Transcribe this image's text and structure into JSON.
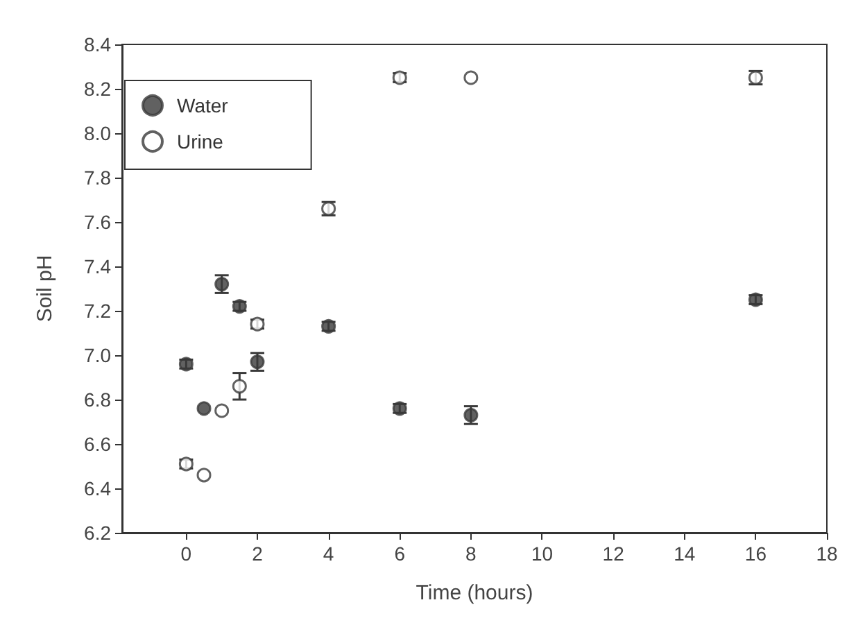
{
  "chart_data": {
    "type": "scatter",
    "xlabel": "Time (hours)",
    "ylabel": "Soil pH",
    "xlim": [
      -1.8,
      18
    ],
    "xticks": [
      0,
      2,
      4,
      6,
      8,
      10,
      12,
      14,
      16,
      18
    ],
    "ylim": [
      6.2,
      8.4
    ],
    "yticks": [
      6.2,
      6.4,
      6.6,
      6.8,
      {
        "value": 7,
        "label": "7.0"
      },
      7.2,
      7.4,
      7.6,
      7.8,
      {
        "value": 8,
        "label": "8.0"
      },
      8.2,
      8.4
    ],
    "legend": "top left",
    "marker": "circle",
    "x": [
      0,
      0.5,
      1,
      1.5,
      2,
      4,
      6,
      8,
      16
    ],
    "series": [
      {
        "name": "Water",
        "color": "#3a3a3a",
        "values": [
          6.96,
          6.76,
          7.32,
          7.22,
          6.97,
          7.13,
          6.76,
          6.73,
          7.25
        ],
        "errors": [
          0.02,
          null,
          0.04,
          0.02,
          0.04,
          0.02,
          0.02,
          0.04,
          0.02
        ]
      },
      {
        "name": "Urine",
        "color": "#ffffff",
        "values": [
          6.51,
          6.46,
          6.75,
          6.86,
          7.14,
          7.66,
          8.25,
          8.25,
          8.25
        ],
        "errors": [
          0.02,
          null,
          null,
          0.06,
          0.02,
          0.03,
          0.02,
          null,
          0.03
        ]
      }
    ]
  }
}
